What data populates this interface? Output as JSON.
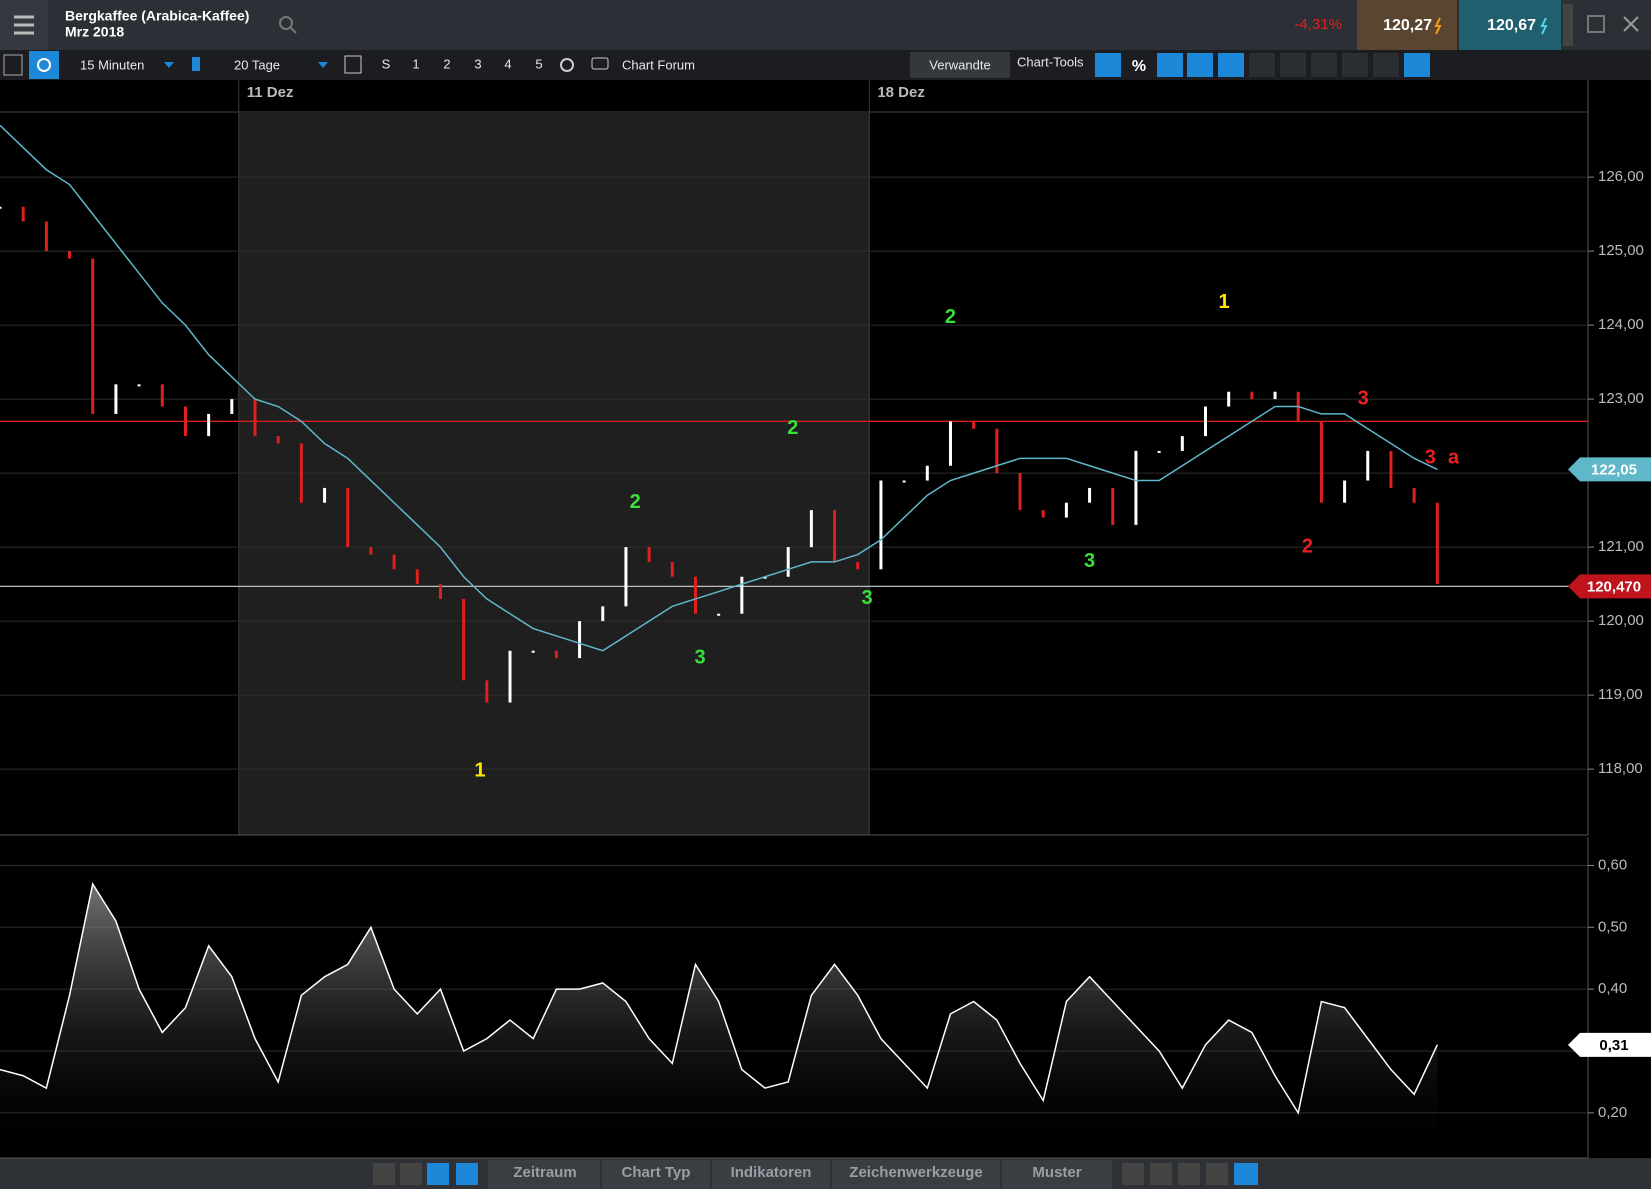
{
  "header": {
    "instrument": "Bergkaffee (Arabica-Kaffee)",
    "contract": "Mrz 2018",
    "change": "-4,31%",
    "bid": "120,27",
    "ask": "120,67"
  },
  "toolbar": {
    "interval": "15 Minuten",
    "range": "20 Tage",
    "presets": [
      "S",
      "1",
      "2",
      "3",
      "4",
      "5"
    ],
    "forum": "Chart Forum",
    "related": "Verwandte",
    "tools": "Chart-Tools",
    "percent": "%"
  },
  "bottom_bar": {
    "tabs": [
      "Zeitraum",
      "Chart Typ",
      "Indikatoren",
      "Zeichenwerkzeuge",
      "Muster"
    ]
  },
  "chart_data": [
    {
      "type": "price",
      "xlim": [
        0,
        68.5
      ],
      "xticks": [
        {
          "value": 10.3,
          "label": "11 Dez"
        },
        {
          "value": 37.5,
          "label": "18 Dez"
        }
      ],
      "ylim": [
        117.11,
        126.88
      ],
      "yticks": [
        {
          "value": 118,
          "label": "118,00"
        },
        {
          "value": 119,
          "label": "119,00"
        },
        {
          "value": 120,
          "label": "120,00"
        },
        {
          "value": 121,
          "label": "121,00"
        },
        {
          "value": 122,
          "label": "122,00"
        },
        {
          "value": 123,
          "label": "123,00"
        },
        {
          "value": 124,
          "label": "124,00"
        },
        {
          "value": 125,
          "label": "125,00"
        },
        {
          "value": 126,
          "label": "126,00"
        }
      ],
      "grid": true,
      "series": [
        {
          "style": "bars",
          "color": "#ffffff",
          "down_color": "#e0201c",
          "values": [
            125.6,
            125.4,
            125.0,
            124.9,
            122.8,
            123.2,
            123.2,
            122.9,
            122.5,
            122.8,
            123.0,
            122.5,
            122.4,
            121.6,
            121.8,
            121.0,
            120.9,
            120.7,
            120.5,
            120.3,
            119.2,
            118.9,
            119.6,
            119.6,
            119.5,
            120.0,
            120.2,
            121.0,
            120.8,
            120.6,
            120.1,
            120.1,
            120.6,
            120.6,
            121.0,
            121.5,
            120.8,
            120.7,
            121.9,
            121.9,
            122.1,
            122.7,
            122.6,
            122.0,
            121.5,
            121.4,
            121.6,
            121.8,
            121.3,
            122.3,
            122.3,
            122.5,
            122.9,
            123.1,
            123.0,
            123.1,
            122.7,
            121.6,
            121.9,
            122.3,
            121.8,
            121.6,
            120.5
          ]
        },
        {
          "style": "line",
          "color": "#5fb7c9",
          "values": [
            126.7,
            126.4,
            126.1,
            125.9,
            125.5,
            125.1,
            124.7,
            124.3,
            124.0,
            123.6,
            123.3,
            123.0,
            122.9,
            122.7,
            122.4,
            122.2,
            121.9,
            121.6,
            121.3,
            121.0,
            120.6,
            120.3,
            120.1,
            119.9,
            119.8,
            119.7,
            119.6,
            119.8,
            120.0,
            120.2,
            120.3,
            120.4,
            120.5,
            120.6,
            120.7,
            120.8,
            120.8,
            120.9,
            121.1,
            121.4,
            121.7,
            121.9,
            122.0,
            122.1,
            122.2,
            122.2,
            122.2,
            122.1,
            122.0,
            121.9,
            121.9,
            122.1,
            122.3,
            122.5,
            122.7,
            122.9,
            122.9,
            122.8,
            122.8,
            122.6,
            122.4,
            122.2,
            122.05
          ]
        }
      ],
      "levels": [
        {
          "value": 122.7,
          "color": "#d42020"
        },
        {
          "value": 120.47,
          "color": "#bdbdbd"
        }
      ],
      "tags": [
        {
          "value": 122.05,
          "label": "122,05",
          "color": "#5fb7c9"
        },
        {
          "value": 120.47,
          "label": "120,470",
          "color": "#c0141c"
        }
      ],
      "annotations": [
        {
          "text": "1",
          "x": 20.7,
          "y": 117.97,
          "color": "#ffe800"
        },
        {
          "text": "2",
          "x": 27.4,
          "y": 121.6,
          "color": "#3ae03a"
        },
        {
          "text": "3",
          "x": 30.2,
          "y": 119.5,
          "color": "#3ae03a"
        },
        {
          "text": "2",
          "x": 34.2,
          "y": 122.6,
          "color": "#3ae03a"
        },
        {
          "text": "3",
          "x": 37.4,
          "y": 120.3,
          "color": "#3ae03a"
        },
        {
          "text": "2",
          "x": 41.0,
          "y": 124.1,
          "color": "#3ae03a"
        },
        {
          "text": "3",
          "x": 47.0,
          "y": 120.8,
          "color": "#3ae03a"
        },
        {
          "text": "1",
          "x": 52.8,
          "y": 124.3,
          "color": "#ffe800"
        },
        {
          "text": "2",
          "x": 56.4,
          "y": 121.0,
          "color": "#e82020"
        },
        {
          "text": "3",
          "x": 58.8,
          "y": 123.0,
          "color": "#e82020"
        },
        {
          "text": "3",
          "x": 61.7,
          "y": 122.2,
          "color": "#e82020"
        },
        {
          "text": "a",
          "x": 62.7,
          "y": 122.2,
          "color": "#e82020"
        }
      ]
    },
    {
      "type": "area",
      "xlim": [
        0,
        68.5
      ],
      "ylim": [
        0.127,
        0.646
      ],
      "yticks": [
        {
          "value": 0.2,
          "label": "0,20"
        },
        {
          "value": 0.3,
          "label": "0,30"
        },
        {
          "value": 0.4,
          "label": "0,40"
        },
        {
          "value": 0.5,
          "label": "0,50"
        },
        {
          "value": 0.6,
          "label": "0,60"
        }
      ],
      "grid": true,
      "series": [
        {
          "color": "#ffffff",
          "values": [
            0.27,
            0.26,
            0.24,
            0.39,
            0.57,
            0.51,
            0.4,
            0.33,
            0.37,
            0.47,
            0.42,
            0.32,
            0.25,
            0.39,
            0.42,
            0.44,
            0.5,
            0.4,
            0.36,
            0.4,
            0.3,
            0.32,
            0.35,
            0.32,
            0.4,
            0.4,
            0.41,
            0.38,
            0.32,
            0.28,
            0.44,
            0.38,
            0.27,
            0.24,
            0.25,
            0.39,
            0.44,
            0.39,
            0.32,
            0.28,
            0.24,
            0.36,
            0.38,
            0.35,
            0.28,
            0.22,
            0.38,
            0.42,
            0.38,
            0.34,
            0.3,
            0.24,
            0.31,
            0.35,
            0.33,
            0.26,
            0.2,
            0.38,
            0.37,
            0.32,
            0.27,
            0.23,
            0.31
          ]
        }
      ],
      "tags": [
        {
          "value": 0.31,
          "label": "0,31",
          "color": "#ffffff"
        }
      ]
    }
  ]
}
